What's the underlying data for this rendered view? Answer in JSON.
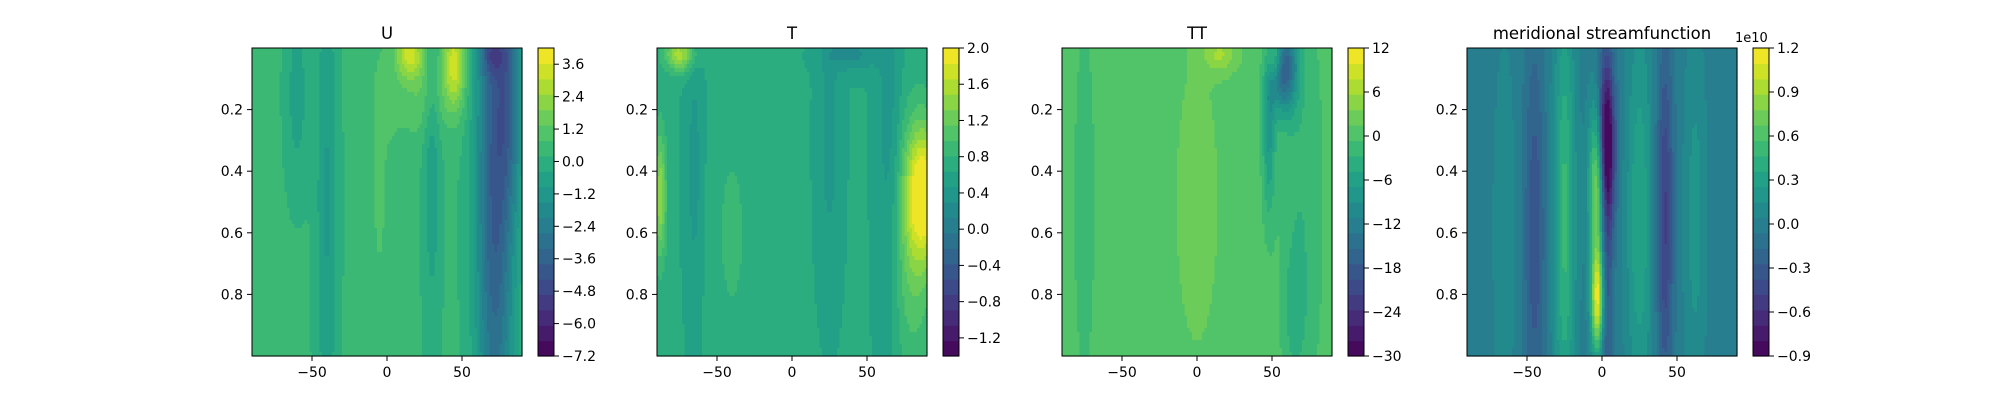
{
  "chart_data": [
    {
      "type": "contourf",
      "title": "U",
      "xlabel": "",
      "ylabel": "",
      "x_range": [
        -90,
        90
      ],
      "y_range": [
        0,
        1
      ],
      "y_inverted": true,
      "x_ticks": [
        -50,
        0,
        50
      ],
      "x_tick_labels": [
        "−50",
        "0",
        "50"
      ],
      "y_ticks": [
        0.2,
        0.4,
        0.6,
        0.8
      ],
      "y_tick_labels": [
        "0.2",
        "0.4",
        "0.6",
        "0.8"
      ],
      "colorbar": {
        "range": [
          -7.2,
          4.2
        ],
        "ticks": [
          -7.2,
          -6.0,
          -4.8,
          -3.6,
          -2.4,
          -1.2,
          0.0,
          1.2,
          2.4,
          3.6
        ],
        "tick_labels": [
          "−7.2",
          "−6.0",
          "−4.8",
          "−3.6",
          "−2.4",
          "−1.2",
          "0.0",
          "1.2",
          "2.4",
          "3.6"
        ],
        "offset_text": ""
      },
      "colormap": "viridis",
      "field": {
        "base": 0.3,
        "features": [
          {
            "x": 72,
            "y": 0.45,
            "sx": 9,
            "sy": 0.7,
            "a": -4.2
          },
          {
            "x": 82,
            "y": 0.15,
            "sx": 6,
            "sy": 0.25,
            "a": -2.0
          },
          {
            "x": 70,
            "y": 0.02,
            "sx": 6,
            "sy": 0.05,
            "a": -1.8
          },
          {
            "x": 45,
            "y": 0.05,
            "sx": 5,
            "sy": 0.1,
            "a": 2.8
          },
          {
            "x": 15,
            "y": 0.02,
            "sx": 6,
            "sy": 0.05,
            "a": 2.5
          },
          {
            "x": 25,
            "y": 0.12,
            "sx": 15,
            "sy": 0.12,
            "a": 1.1
          },
          {
            "x": -40,
            "y": 0.5,
            "sx": 5,
            "sy": 0.6,
            "a": -1.3
          },
          {
            "x": 30,
            "y": 0.35,
            "sx": 4,
            "sy": 0.4,
            "a": -1.1
          },
          {
            "x": -60,
            "y": 0.15,
            "sx": 5,
            "sy": 0.2,
            "a": -1.0
          },
          {
            "x": -5,
            "y": 0.5,
            "sx": 10,
            "sy": 0.6,
            "a": 0.5
          }
        ]
      }
    },
    {
      "type": "contourf",
      "title": "T",
      "xlabel": "",
      "ylabel": "",
      "x_range": [
        -90,
        90
      ],
      "y_range": [
        0,
        1
      ],
      "y_inverted": true,
      "x_ticks": [
        -50,
        0,
        50
      ],
      "x_tick_labels": [
        "−50",
        "0",
        "50"
      ],
      "y_ticks": [
        0.2,
        0.4,
        0.6,
        0.8
      ],
      "y_tick_labels": [
        "0.2",
        "0.4",
        "0.6",
        "0.8"
      ],
      "colorbar": {
        "range": [
          -1.4,
          2.0
        ],
        "ticks": [
          -1.2,
          -0.8,
          -0.4,
          0.0,
          0.4,
          0.8,
          1.2,
          1.6,
          2.0
        ],
        "tick_labels": [
          "−1.2",
          "−0.8",
          "−0.4",
          "0.0",
          "0.4",
          "0.8",
          "1.2",
          "1.6",
          "2.0"
        ],
        "offset_text": ""
      },
      "colormap": "viridis",
      "field": {
        "base": 0.65,
        "features": [
          {
            "x": 88,
            "y": 0.47,
            "sx": 8,
            "sy": 0.15,
            "a": 1.3
          },
          {
            "x": 80,
            "y": 0.65,
            "sx": 10,
            "sy": 0.3,
            "a": 0.5
          },
          {
            "x": -88,
            "y": 0.48,
            "sx": 3,
            "sy": 0.15,
            "a": 0.8
          },
          {
            "x": -75,
            "y": 0.02,
            "sx": 7,
            "sy": 0.04,
            "a": 0.9
          },
          {
            "x": 40,
            "y": 0.02,
            "sx": 12,
            "sy": 0.04,
            "a": -0.4
          },
          {
            "x": 65,
            "y": 0.35,
            "sx": 6,
            "sy": 0.5,
            "a": -0.3
          },
          {
            "x": 25,
            "y": 0.3,
            "sx": 5,
            "sy": 0.3,
            "a": -0.25
          },
          {
            "x": -65,
            "y": 0.4,
            "sx": 4,
            "sy": 0.3,
            "a": -0.25
          },
          {
            "x": -40,
            "y": 0.6,
            "sx": 10,
            "sy": 0.3,
            "a": 0.2
          }
        ]
      }
    },
    {
      "type": "contourf",
      "title": "TT",
      "xlabel": "",
      "ylabel": "",
      "x_range": [
        -90,
        90
      ],
      "y_range": [
        0,
        1
      ],
      "y_inverted": true,
      "x_ticks": [
        -50,
        0,
        50
      ],
      "x_tick_labels": [
        "−50",
        "0",
        "50"
      ],
      "y_ticks": [
        0.2,
        0.4,
        0.6,
        0.8
      ],
      "y_tick_labels": [
        "0.2",
        "0.4",
        "0.6",
        "0.8"
      ],
      "colorbar": {
        "range": [
          -30,
          12
        ],
        "ticks": [
          -30,
          -24,
          -18,
          -12,
          -6,
          0,
          6,
          12
        ],
        "tick_labels": [
          "−30",
          "−24",
          "−18",
          "−12",
          "−6",
          "0",
          "6",
          "12"
        ],
        "offset_text": ""
      },
      "colormap": "viridis",
      "field": {
        "base": 0.5,
        "features": [
          {
            "x": 52,
            "y": 0.03,
            "sx": 4,
            "sy": 0.05,
            "a": 8
          },
          {
            "x": 58,
            "y": 0.06,
            "sx": 6,
            "sy": 0.1,
            "a": -18
          },
          {
            "x": 48,
            "y": 0.25,
            "sx": 3,
            "sy": 0.2,
            "a": -8
          },
          {
            "x": 15,
            "y": 0.02,
            "sx": 8,
            "sy": 0.04,
            "a": 5
          },
          {
            "x": 70,
            "y": 0.5,
            "sx": 10,
            "sy": 0.5,
            "a": -3
          },
          {
            "x": -75,
            "y": 0.5,
            "sx": 6,
            "sy": 0.5,
            "a": -2
          },
          {
            "x": 0,
            "y": 0.5,
            "sx": 15,
            "sy": 0.5,
            "a": 1.5
          },
          {
            "x": 65,
            "y": 0.85,
            "sx": 5,
            "sy": 0.15,
            "a": -3
          }
        ]
      }
    },
    {
      "type": "contourf",
      "title": "meridional streamfunction",
      "xlabel": "",
      "ylabel": "",
      "x_range": [
        -90,
        90
      ],
      "y_range": [
        0,
        1
      ],
      "y_inverted": true,
      "x_ticks": [
        -50,
        0,
        50
      ],
      "x_tick_labels": [
        "−50",
        "0",
        "50"
      ],
      "y_ticks": [
        0.2,
        0.4,
        0.6,
        0.8
      ],
      "y_tick_labels": [
        "0.2",
        "0.4",
        "0.6",
        "0.8"
      ],
      "colorbar": {
        "range": [
          -0.9,
          1.2
        ],
        "ticks": [
          -0.9,
          -0.6,
          -0.3,
          0.0,
          0.3,
          0.6,
          0.9,
          1.2
        ],
        "tick_labels": [
          "−0.9",
          "−0.6",
          "−0.3",
          "0.0",
          "0.3",
          "0.6",
          "0.9",
          "1.2"
        ],
        "offset_text": "1e10"
      },
      "colormap": "viridis",
      "field": {
        "base": 0.0,
        "features": [
          {
            "x": 3,
            "y": 0.32,
            "sx": 4,
            "sy": 0.18,
            "a": -0.9
          },
          {
            "x": 3,
            "y": 0.6,
            "sx": 3,
            "sy": 0.45,
            "a": -0.4
          },
          {
            "x": -3,
            "y": 0.45,
            "sx": 4,
            "sy": 0.18,
            "a": 0.9
          },
          {
            "x": -3,
            "y": 0.82,
            "sx": 3,
            "sy": 0.12,
            "a": 1.1
          },
          {
            "x": -25,
            "y": 0.55,
            "sx": 5,
            "sy": 0.5,
            "a": 0.5
          },
          {
            "x": -45,
            "y": 0.6,
            "sx": 5,
            "sy": 0.45,
            "a": -0.35
          },
          {
            "x": 25,
            "y": 0.55,
            "sx": 6,
            "sy": 0.45,
            "a": 0.35
          },
          {
            "x": 42,
            "y": 0.55,
            "sx": 4,
            "sy": 0.4,
            "a": -0.5
          },
          {
            "x": 62,
            "y": 0.55,
            "sx": 5,
            "sy": 0.4,
            "a": 0.2
          },
          {
            "x": -65,
            "y": 0.6,
            "sx": 5,
            "sy": 0.4,
            "a": 0.15
          }
        ]
      }
    }
  ]
}
